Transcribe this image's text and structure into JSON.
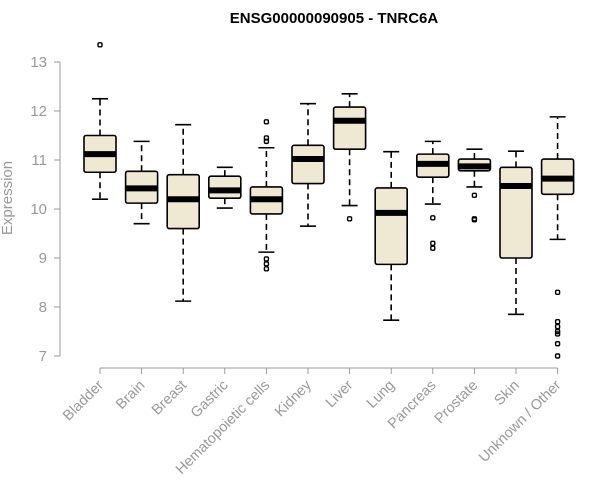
{
  "chart_data": {
    "type": "boxplot",
    "title": "ENSG00000090905 - TNRC6A",
    "ylabel": "Expression",
    "xlabel": "",
    "ylim": [
      7,
      13
    ],
    "yticks": [
      7,
      8,
      9,
      10,
      11,
      12,
      13
    ],
    "box_fill": "#efe8d2",
    "categories": [
      "Bladder",
      "Brain",
      "Breast",
      "Gastric",
      "Hematopoietic cells",
      "Kidney",
      "Liver",
      "Lung",
      "Pancreas",
      "Prostate",
      "Skin",
      "Unknown / Other"
    ],
    "boxes": [
      {
        "category": "Bladder",
        "whisker_low": 10.2,
        "q1": 10.75,
        "median": 11.12,
        "q3": 11.5,
        "whisker_high": 12.25,
        "outliers": [
          13.35
        ]
      },
      {
        "category": "Brain",
        "whisker_low": 9.7,
        "q1": 10.12,
        "median": 10.42,
        "q3": 10.77,
        "whisker_high": 11.38,
        "outliers": []
      },
      {
        "category": "Breast",
        "whisker_low": 8.12,
        "q1": 9.6,
        "median": 10.2,
        "q3": 10.7,
        "whisker_high": 11.72,
        "outliers": []
      },
      {
        "category": "Gastric",
        "whisker_low": 10.02,
        "q1": 10.22,
        "median": 10.38,
        "q3": 10.67,
        "whisker_high": 10.85,
        "outliers": []
      },
      {
        "category": "Hematopoietic cells",
        "whisker_low": 9.12,
        "q1": 9.9,
        "median": 10.2,
        "q3": 10.45,
        "whisker_high": 11.25,
        "outliers": [
          11.78,
          11.45,
          11.38,
          8.98,
          8.88,
          8.78
        ]
      },
      {
        "category": "Kidney",
        "whisker_low": 9.65,
        "q1": 10.52,
        "median": 11.02,
        "q3": 11.3,
        "whisker_high": 12.15,
        "outliers": []
      },
      {
        "category": "Liver",
        "whisker_low": 10.07,
        "q1": 11.22,
        "median": 11.8,
        "q3": 12.08,
        "whisker_high": 12.35,
        "outliers": [
          9.8
        ]
      },
      {
        "category": "Lung",
        "whisker_low": 7.73,
        "q1": 8.87,
        "median": 9.92,
        "q3": 10.43,
        "whisker_high": 11.17,
        "outliers": []
      },
      {
        "category": "Pancreas",
        "whisker_low": 10.1,
        "q1": 10.65,
        "median": 10.92,
        "q3": 11.12,
        "whisker_high": 11.38,
        "outliers": [
          9.82,
          9.3,
          9.2
        ]
      },
      {
        "category": "Prostate",
        "whisker_low": 10.45,
        "q1": 10.78,
        "median": 10.87,
        "q3": 11.02,
        "whisker_high": 11.22,
        "outliers": [
          10.28,
          9.8,
          9.78
        ]
      },
      {
        "category": "Skin",
        "whisker_low": 7.85,
        "q1": 9.0,
        "median": 10.47,
        "q3": 10.85,
        "whisker_high": 11.18,
        "outliers": []
      },
      {
        "category": "Unknown / Other",
        "whisker_low": 9.38,
        "q1": 10.3,
        "median": 10.62,
        "q3": 11.02,
        "whisker_high": 11.88,
        "outliers": [
          8.3,
          7.7,
          7.6,
          7.5,
          7.45,
          7.25,
          7.0
        ]
      }
    ]
  }
}
